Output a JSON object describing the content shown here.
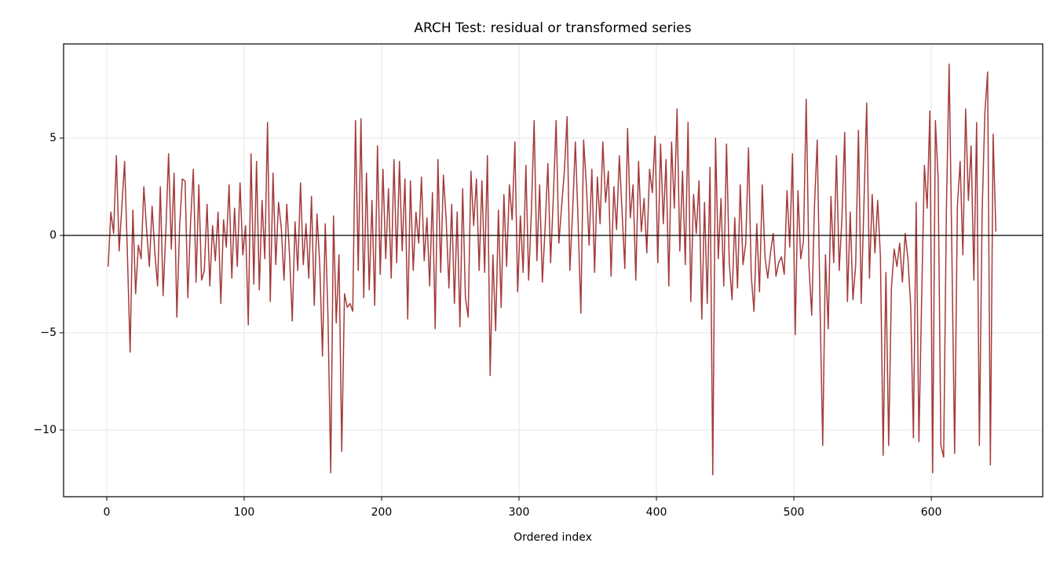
{
  "chart_data": {
    "type": "line",
    "title": "ARCH Test: residual or transformed series",
    "xlabel": "Ordered index",
    "xlim": [
      -31.4,
      681.1
    ],
    "ylim": [
      -13.43,
      9.84
    ],
    "xticks": [
      0,
      100,
      200,
      300,
      400,
      500,
      600
    ],
    "yticks": [
      {
        "value": -10,
        "label": "−10"
      },
      {
        "value": -5,
        "label": "−5"
      },
      0,
      5
    ],
    "grid": true,
    "reference_line": 0,
    "x": [
      1,
      3,
      5,
      7,
      9,
      11,
      13,
      15,
      17,
      19,
      21,
      23,
      25,
      27,
      29,
      31,
      33,
      35,
      37,
      39,
      41,
      43,
      45,
      47,
      49,
      51,
      53,
      55,
      57,
      59,
      61,
      63,
      65,
      67,
      69,
      71,
      73,
      75,
      77,
      79,
      81,
      83,
      85,
      87,
      89,
      91,
      93,
      95,
      97,
      99,
      101,
      103,
      105,
      107,
      109,
      111,
      113,
      115,
      117,
      119,
      121,
      123,
      125,
      127,
      129,
      131,
      133,
      135,
      137,
      139,
      141,
      143,
      145,
      147,
      149,
      151,
      153,
      155,
      157,
      159,
      161,
      163,
      165,
      167,
      169,
      171,
      173,
      175,
      177,
      179,
      181,
      183,
      185,
      187,
      189,
      191,
      193,
      195,
      197,
      199,
      201,
      203,
      205,
      207,
      209,
      211,
      213,
      215,
      217,
      219,
      221,
      223,
      225,
      227,
      229,
      231,
      233,
      235,
      237,
      239,
      241,
      243,
      245,
      247,
      249,
      251,
      253,
      255,
      257,
      259,
      261,
      263,
      265,
      267,
      269,
      271,
      273,
      275,
      277,
      279,
      281,
      283,
      285,
      287,
      289,
      291,
      293,
      295,
      297,
      299,
      301,
      303,
      305,
      307,
      309,
      311,
      313,
      315,
      317,
      319,
      321,
      323,
      325,
      327,
      329,
      331,
      333,
      335,
      337,
      339,
      341,
      343,
      345,
      347,
      349,
      351,
      353,
      355,
      357,
      359,
      361,
      363,
      365,
      367,
      369,
      371,
      373,
      375,
      377,
      379,
      381,
      383,
      385,
      387,
      389,
      391,
      393,
      395,
      397,
      399,
      401,
      403,
      405,
      407,
      409,
      411,
      413,
      415,
      417,
      419,
      421,
      423,
      425,
      427,
      429,
      431,
      433,
      435,
      437,
      439,
      441,
      443,
      445,
      447,
      449,
      451,
      453,
      455,
      457,
      459,
      461,
      463,
      465,
      467,
      469,
      471,
      473,
      475,
      477,
      479,
      481,
      483,
      485,
      487,
      489,
      491,
      493,
      495,
      497,
      499,
      501,
      503,
      505,
      507,
      509,
      511,
      513,
      515,
      517,
      519,
      521,
      523,
      525,
      527,
      529,
      531,
      533,
      535,
      537,
      539,
      541,
      543,
      545,
      547,
      549,
      551,
      553,
      555,
      557,
      559,
      561,
      563,
      565,
      567,
      569,
      571,
      573,
      575,
      577,
      579,
      581,
      583,
      585,
      587,
      589,
      591,
      593,
      595,
      597,
      599,
      601,
      603,
      605,
      607,
      609,
      611,
      613,
      615,
      617,
      619,
      621,
      623,
      625,
      627,
      629,
      631,
      633,
      635,
      637,
      639,
      641,
      643,
      645,
      647
    ],
    "series": [
      {
        "color": "#a03030",
        "values": [
          -1.6,
          1.2,
          0.1,
          4.1,
          -0.8,
          1.5,
          3.8,
          -0.9,
          -6.0,
          1.3,
          -3.0,
          -0.5,
          -1.2,
          2.5,
          0.3,
          -1.6,
          1.5,
          -0.9,
          -2.6,
          2.5,
          -3.1,
          0.2,
          4.2,
          -0.7,
          3.2,
          -4.2,
          0.4,
          2.9,
          2.8,
          -3.2,
          0.7,
          3.4,
          -2.4,
          2.6,
          -2.3,
          -1.8,
          1.6,
          -2.6,
          0.5,
          -1.3,
          1.2,
          -3.5,
          0.8,
          -0.6,
          2.6,
          -2.2,
          1.4,
          -1.6,
          2.7,
          -1.0,
          0.5,
          -4.6,
          4.2,
          -2.5,
          3.8,
          -2.8,
          1.8,
          -1.2,
          5.8,
          -3.4,
          3.2,
          -1.5,
          1.7,
          0.4,
          -2.3,
          1.6,
          -1.0,
          -4.4,
          0.7,
          -1.8,
          2.7,
          -1.5,
          0.6,
          -2.2,
          2.0,
          -3.6,
          1.1,
          -1.5,
          -6.2,
          0.6,
          -4.2,
          -12.2,
          1.0,
          -4.5,
          -1.0,
          -11.1,
          -3.0,
          -3.7,
          -3.5,
          -3.9,
          5.9,
          -1.8,
          6.0,
          -3.2,
          3.2,
          -2.8,
          1.8,
          -3.6,
          4.6,
          -2.0,
          3.4,
          -1.2,
          2.4,
          -2.2,
          3.9,
          -1.4,
          3.8,
          -0.8,
          2.9,
          -4.3,
          2.8,
          -1.8,
          1.2,
          -0.4,
          3.0,
          -1.3,
          0.9,
          -2.6,
          2.2,
          -4.8,
          3.9,
          -1.9,
          3.1,
          0.8,
          -2.7,
          1.6,
          -3.5,
          1.2,
          -4.7,
          2.4,
          -3.2,
          -4.2,
          3.3,
          0.5,
          2.9,
          -1.8,
          2.8,
          -1.9,
          4.1,
          -7.2,
          -1.0,
          -4.9,
          1.3,
          -3.7,
          2.1,
          -1.6,
          2.6,
          0.8,
          4.8,
          -2.9,
          1.0,
          -1.9,
          3.6,
          -2.3,
          1.2,
          5.9,
          -1.3,
          2.6,
          -2.4,
          0.4,
          3.7,
          -1.4,
          2.0,
          5.9,
          -0.4,
          1.5,
          3.3,
          6.1,
          -1.8,
          1.2,
          4.8,
          0.7,
          -4.0,
          4.9,
          2.6,
          -0.5,
          3.4,
          -1.9,
          3.0,
          0.6,
          4.8,
          1.7,
          3.3,
          -2.1,
          2.5,
          0.3,
          4.1,
          1.2,
          -1.7,
          5.5,
          0.9,
          2.6,
          -2.3,
          3.8,
          0.2,
          1.9,
          -0.9,
          3.4,
          2.2,
          5.1,
          -1.4,
          4.7,
          0.6,
          3.9,
          -2.6,
          4.8,
          1.4,
          6.5,
          -0.8,
          3.3,
          -1.5,
          5.8,
          -3.4,
          2.1,
          0.1,
          2.8,
          -4.3,
          1.7,
          -3.5,
          3.5,
          -12.3,
          5.0,
          -1.2,
          1.9,
          -2.6,
          4.7,
          -1.4,
          -3.3,
          0.9,
          -2.7,
          2.6,
          -1.5,
          -0.4,
          4.5,
          -2.1,
          -3.9,
          0.6,
          -2.9,
          2.6,
          -1.1,
          -2.2,
          -0.9,
          0.1,
          -2.1,
          -1.4,
          -1.1,
          -2.0,
          2.3,
          -0.6,
          4.2,
          -5.1,
          2.3,
          -1.2,
          -0.3,
          7.0,
          -1.6,
          -4.1,
          1.5,
          4.9,
          -3.4,
          -10.8,
          -1.0,
          -4.8,
          2.0,
          -1.4,
          4.1,
          -1.8,
          0.9,
          5.3,
          -3.4,
          1.2,
          -3.3,
          -1.5,
          5.4,
          -3.5,
          1.6,
          6.8,
          -2.2,
          2.1,
          -0.9,
          1.8,
          -1.1,
          -11.3,
          -1.9,
          -10.8,
          -2.7,
          -0.7,
          -1.6,
          -0.4,
          -2.4,
          0.1,
          -1.2,
          -3.6,
          -10.4,
          1.7,
          -10.6,
          -3.2,
          3.6,
          1.4,
          6.4,
          -12.2,
          5.9,
          2.9,
          -10.8,
          -11.4,
          1.3,
          8.8,
          -0.9,
          -11.2,
          1.5,
          3.8,
          -1.0,
          6.5,
          1.8,
          4.6,
          -2.3,
          5.8,
          -10.8,
          1.2,
          6.3,
          8.4,
          -11.8,
          5.2,
          0.2
        ]
      }
    ]
  }
}
